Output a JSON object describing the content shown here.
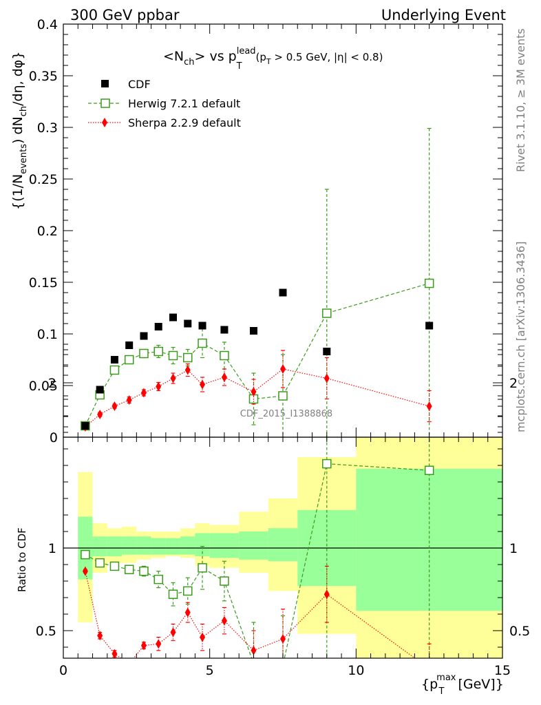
{
  "header": {
    "left": "300 GeV ppbar",
    "right": "Underlying Event"
  },
  "side": {
    "rivet": "Rivet 3.1.10, ≥ 3M events",
    "mcplots": "mcplots.cern.ch [arXiv:1306.3436]"
  },
  "watermark": "CDF_2015_I1388868",
  "colors": {
    "herwig": "#3a9a1a",
    "sherpa": "#ff0000",
    "green_band": "#99ff99",
    "yellow_band": "#ffff99"
  },
  "chart_data": [
    {
      "type": "scatter",
      "title_parts": {
        "main": "<N",
        "sub": "ch",
        "mid": "> vs p",
        "sup": "lead",
        "sub2": "T",
        "cut": "(p",
        "cut_sub": "T",
        "cut_tail": " > 0.5 GeV, |η| < 0.8)"
      },
      "ylabel": "{(1/N_events) dN_ch/dη, dφ}",
      "ylabel_parts": {
        "a": "{(1/N",
        "a_sub": "events",
        "b": ") dN",
        "b_sub": "ch",
        "c": "/dη, dφ}"
      },
      "ylim": [
        0,
        0.4
      ],
      "yticks": [
        0,
        0.05,
        0.1,
        0.15,
        0.2,
        0.25,
        0.3,
        0.35,
        0.4
      ],
      "ytick_labels": [
        "0",
        "0.05",
        "0.1",
        "0.15",
        "0.2",
        "0.25",
        "0.3",
        "0.35",
        "0.4"
      ],
      "xlim": [
        0,
        15
      ],
      "legend": [
        "CDF",
        "Herwig 7.2.1 default",
        "Sherpa 2.2.9 default"
      ],
      "legend_position": "top-left",
      "series": [
        {
          "name": "CDF",
          "x": [
            0.75,
            1.25,
            1.75,
            2.25,
            2.75,
            3.25,
            3.75,
            4.25,
            4.75,
            5.5,
            6.5,
            7.5,
            9.0,
            12.5
          ],
          "y": [
            0.011,
            0.046,
            0.075,
            0.089,
            0.098,
            0.107,
            0.116,
            0.11,
            0.108,
            0.104,
            0.103,
            0.14,
            0.083,
            0.108
          ]
        },
        {
          "name": "Herwig 7.2.1 default",
          "x": [
            0.75,
            1.25,
            1.75,
            2.25,
            2.75,
            3.25,
            3.75,
            4.25,
            4.75,
            5.5,
            6.5,
            7.5,
            9.0,
            12.5
          ],
          "y": [
            0.011,
            0.041,
            0.065,
            0.075,
            0.081,
            0.083,
            0.079,
            0.077,
            0.091,
            0.079,
            0.037,
            0.04,
            0.12,
            0.149
          ],
          "err": [
            0.002,
            0.003,
            0.003,
            0.003,
            0.004,
            0.006,
            0.008,
            0.008,
            0.014,
            0.013,
            0.025,
            0.04,
            0.12,
            0.15
          ]
        },
        {
          "name": "Sherpa 2.2.9 default",
          "x": [
            0.75,
            1.25,
            1.75,
            2.25,
            2.75,
            3.25,
            3.75,
            4.25,
            4.75,
            5.5,
            6.5,
            7.5,
            9.0,
            12.5
          ],
          "y": [
            0.01,
            0.022,
            0.03,
            0.036,
            0.043,
            0.049,
            0.057,
            0.065,
            0.051,
            0.058,
            0.044,
            0.066,
            0.057,
            0.03
          ],
          "err": [
            0.001,
            0.002,
            0.002,
            0.003,
            0.003,
            0.004,
            0.005,
            0.006,
            0.007,
            0.008,
            0.012,
            0.018,
            0.02,
            0.015
          ]
        }
      ]
    },
    {
      "type": "scatter",
      "ylabel": "Ratio to CDF",
      "xlabel": "{p_T^max [GeV]}",
      "xlabel_parts": {
        "a": "{p",
        "sub": "T",
        "sup": "max",
        "b": " [GeV]}"
      },
      "xlim": [
        0,
        15
      ],
      "xticks": [
        0,
        5,
        10,
        15
      ],
      "xtick_labels": [
        "0",
        "5",
        "10",
        "15"
      ],
      "ylim": [
        0.35,
        2.25
      ],
      "ytick_labels": [
        "0.5",
        "1",
        "2"
      ],
      "yticks": [
        0.5,
        1,
        2
      ],
      "bands": {
        "edges": [
          0.5,
          1.0,
          1.5,
          2.0,
          2.5,
          3.0,
          3.5,
          4.0,
          4.5,
          5.0,
          6.0,
          7.0,
          8.0,
          10.0,
          15.0
        ],
        "green_lo": [
          0.81,
          0.95,
          0.95,
          0.96,
          0.96,
          0.96,
          0.96,
          0.96,
          0.95,
          0.94,
          0.93,
          0.92,
          0.77,
          0.62
        ],
        "green_hi": [
          1.19,
          1.07,
          1.07,
          1.07,
          1.07,
          1.06,
          1.06,
          1.07,
          1.09,
          1.09,
          1.1,
          1.12,
          1.23,
          1.48
        ],
        "yellow_lo": [
          0.55,
          0.85,
          0.91,
          0.91,
          0.93,
          0.94,
          0.95,
          0.94,
          0.89,
          0.88,
          0.85,
          0.74,
          0.48,
          0.25
        ],
        "yellow_hi": [
          1.46,
          1.15,
          1.12,
          1.13,
          1.1,
          1.1,
          1.1,
          1.12,
          1.15,
          1.14,
          1.22,
          1.3,
          1.55,
          1.86
        ]
      },
      "series": [
        {
          "name": "Herwig 7.2.1 default",
          "x": [
            0.75,
            1.25,
            1.75,
            2.25,
            2.75,
            3.25,
            3.75,
            4.25,
            4.75,
            5.5,
            6.5,
            7.5,
            9.0,
            12.5
          ],
          "y": [
            0.96,
            0.91,
            0.89,
            0.87,
            0.86,
            0.81,
            0.72,
            0.74,
            0.88,
            0.8,
            0.3,
            0.29,
            1.51,
            1.47
          ],
          "err": [
            0.01,
            0.01,
            0.02,
            0.02,
            0.03,
            0.05,
            0.07,
            0.08,
            0.13,
            0.12,
            0.25,
            0.3,
            1.5,
            1.5
          ]
        },
        {
          "name": "Sherpa 2.2.9 default",
          "x": [
            0.75,
            1.25,
            1.75,
            2.25,
            2.75,
            3.25,
            3.75,
            4.25,
            4.75,
            5.5,
            6.5,
            7.5,
            9.0,
            12.5
          ],
          "y": [
            0.86,
            0.47,
            0.36,
            0.3,
            0.41,
            0.42,
            0.49,
            0.61,
            0.46,
            0.56,
            0.38,
            0.45,
            0.72,
            0.27
          ],
          "err": [
            0.01,
            0.02,
            0.02,
            0.03,
            0.02,
            0.04,
            0.05,
            0.06,
            0.08,
            0.08,
            0.12,
            0.18,
            0.17,
            0.15
          ]
        }
      ]
    }
  ]
}
